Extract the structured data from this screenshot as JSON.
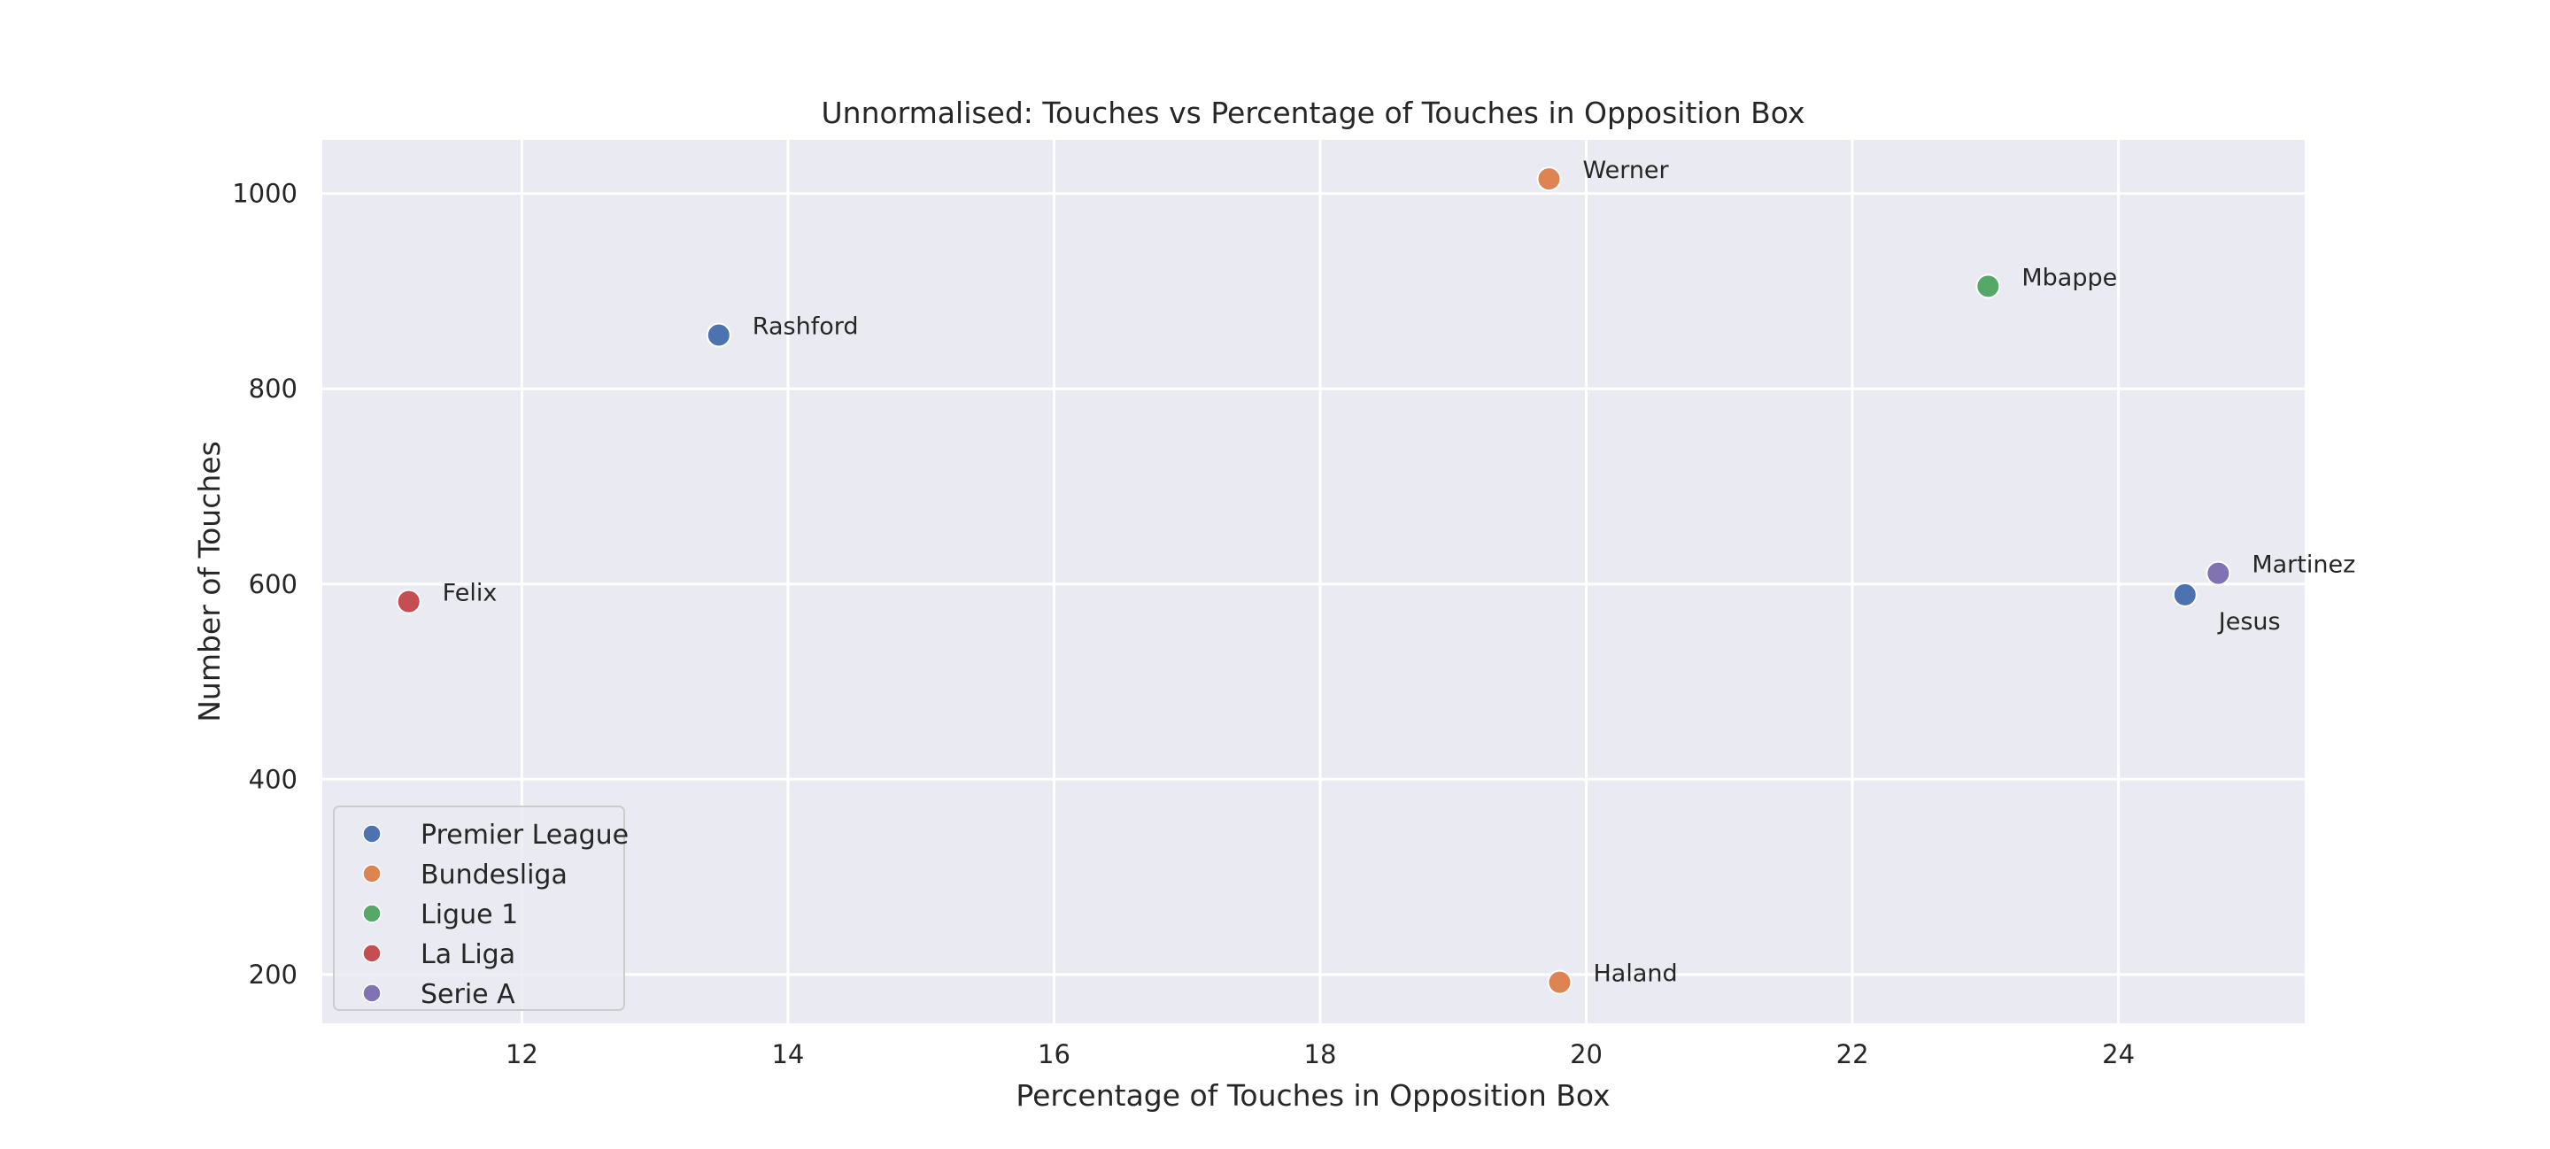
{
  "chart_data": {
    "type": "scatter",
    "title": "Unnormalised: Touches vs Percentage of Touches in Opposition Box",
    "xlabel": "Percentage of Touches in Opposition Box",
    "ylabel": "Number of Touches",
    "xlim": [
      10.5,
      25.4
    ],
    "ylim": [
      150,
      1055
    ],
    "xticks": [
      12,
      14,
      16,
      18,
      20,
      22,
      24
    ],
    "yticks": [
      200,
      400,
      600,
      800,
      1000
    ],
    "grid": true,
    "legend_position": "lower-left",
    "colors": {
      "plot_background": "#EAEAF2",
      "grid": "#FFFFFF"
    },
    "series": [
      {
        "name": "Premier League",
        "color": "#4C72B0",
        "points": [
          {
            "label": "Rashford",
            "x": 13.48,
            "y": 855
          },
          {
            "label": "Jesus",
            "x": 24.5,
            "y": 589
          }
        ]
      },
      {
        "name": "Bundesliga",
        "color": "#DD8452",
        "points": [
          {
            "label": "Werner",
            "x": 19.72,
            "y": 1015
          },
          {
            "label": "Haland",
            "x": 19.8,
            "y": 192
          }
        ]
      },
      {
        "name": "Ligue 1",
        "color": "#55A868",
        "points": [
          {
            "label": "Mbappe",
            "x": 23.02,
            "y": 905
          }
        ]
      },
      {
        "name": "La Liga",
        "color": "#C44E52",
        "points": [
          {
            "label": "Felix",
            "x": 11.15,
            "y": 582
          }
        ]
      },
      {
        "name": "Serie A",
        "color": "#8172B3",
        "points": [
          {
            "label": "Martinez",
            "x": 24.75,
            "y": 611
          }
        ]
      }
    ]
  }
}
